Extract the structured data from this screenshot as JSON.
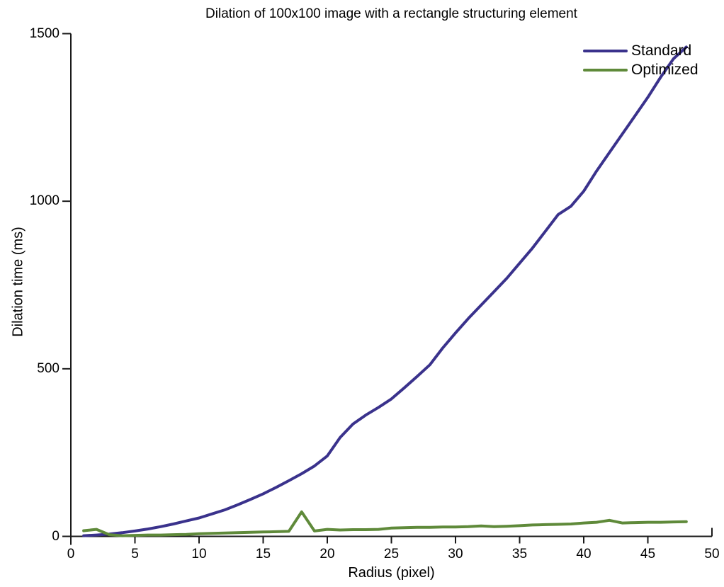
{
  "chart_data": {
    "type": "line",
    "title": "Dilation of 100x100 image with a rectangle structuring element",
    "xlabel": "Radius (pixel)",
    "ylabel": "Dilation time (ms)",
    "xlim": [
      0,
      50
    ],
    "ylim": [
      0,
      1500
    ],
    "xticks": [
      0,
      5,
      10,
      15,
      20,
      25,
      30,
      35,
      40,
      45,
      50
    ],
    "yticks": [
      0,
      500,
      1000,
      1500
    ],
    "grid": false,
    "legend_position": "top-right",
    "axis_color": "#1a1a1a",
    "text_color": "#000000",
    "background_color": "#ffffff",
    "x": [
      1,
      2,
      3,
      4,
      5,
      6,
      7,
      8,
      9,
      10,
      11,
      12,
      13,
      14,
      15,
      16,
      17,
      18,
      19,
      20,
      21,
      22,
      23,
      24,
      25,
      26,
      27,
      28,
      29,
      30,
      31,
      32,
      33,
      34,
      35,
      36,
      37,
      38,
      39,
      40,
      41,
      42,
      43,
      44,
      45,
      46,
      47,
      48
    ],
    "series": [
      {
        "name": "Standard",
        "color": "#3a328c",
        "values": [
          2,
          4,
          7,
          11,
          16,
          22,
          29,
          37,
          46,
          55,
          67,
          79,
          94,
          110,
          127,
          146,
          166,
          187,
          210,
          240,
          295,
          335,
          362,
          385,
          410,
          443,
          477,
          512,
          562,
          607,
          650,
          690,
          730,
          770,
          815,
          860,
          910,
          960,
          985,
          1030,
          1090,
          1145,
          1200,
          1255,
          1310,
          1370,
          1425,
          1460
        ]
      },
      {
        "name": "Optimized",
        "color": "#5f8a3a",
        "values": [
          17,
          21,
          5,
          2,
          3,
          4,
          4,
          5,
          6,
          8,
          9,
          10,
          11,
          12,
          13,
          14,
          15,
          73,
          16,
          21,
          19,
          20,
          20,
          21,
          25,
          26,
          27,
          27,
          28,
          28,
          29,
          31,
          29,
          30,
          32,
          34,
          35,
          36,
          37,
          40,
          42,
          48,
          40,
          41,
          42,
          42,
          43,
          44
        ]
      }
    ]
  }
}
